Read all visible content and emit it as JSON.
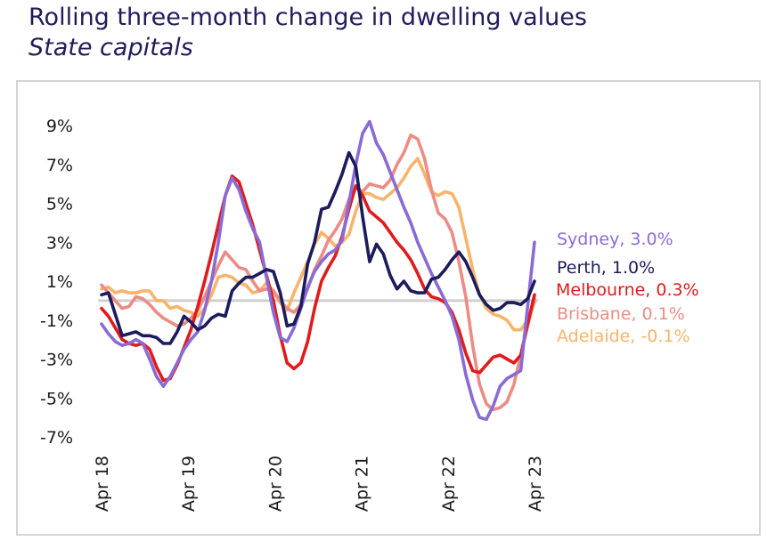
{
  "chart_data": {
    "type": "line",
    "title": "Rolling three-month change in dwelling values",
    "subtitle": "State capitals",
    "y_ticks": [
      "9%",
      "7%",
      "5%",
      "3%",
      "1%",
      "-1%",
      "-3%",
      "-5%",
      "-7%"
    ],
    "ylim": [
      -7,
      9
    ],
    "x_ticks": [
      "Apr 18",
      "Apr 19",
      "Apr 20",
      "Apr 21",
      "Apr 22",
      "Apr 23"
    ],
    "x_range": [
      "Apr 18",
      "Apr 23"
    ],
    "zero_line": true,
    "legend": "right",
    "series": [
      {
        "name": "Sydney",
        "label": "Sydney, 3.0%",
        "color": "#8a6bd6",
        "points": [
          [
            0,
            -1.2
          ],
          [
            1,
            -1.7
          ],
          [
            2,
            -2.1
          ],
          [
            3,
            -2.3
          ],
          [
            4,
            -2.2
          ],
          [
            5,
            -2.0
          ],
          [
            6,
            -2.2
          ],
          [
            7,
            -3.0
          ],
          [
            8,
            -3.9
          ],
          [
            9,
            -4.4
          ],
          [
            10,
            -3.9
          ],
          [
            11,
            -3.2
          ],
          [
            12,
            -2.5
          ],
          [
            13,
            -2.0
          ],
          [
            14,
            -1.6
          ],
          [
            15,
            -0.5
          ],
          [
            16,
            1.0
          ],
          [
            17,
            3.0
          ],
          [
            18,
            5.4
          ],
          [
            19,
            6.3
          ],
          [
            20,
            5.7
          ],
          [
            21,
            4.6
          ],
          [
            22,
            3.7
          ],
          [
            23,
            3.0
          ],
          [
            24,
            1.2
          ],
          [
            25,
            -0.6
          ],
          [
            26,
            -1.9
          ],
          [
            27,
            -2.1
          ],
          [
            28,
            -1.4
          ],
          [
            29,
            -0.4
          ],
          [
            30,
            0.7
          ],
          [
            31,
            1.5
          ],
          [
            32,
            2.0
          ],
          [
            33,
            2.4
          ],
          [
            34,
            2.6
          ],
          [
            35,
            3.1
          ],
          [
            36,
            5.0
          ],
          [
            37,
            7.0
          ],
          [
            38,
            8.6
          ],
          [
            39,
            9.2
          ],
          [
            40,
            8.1
          ],
          [
            41,
            7.5
          ],
          [
            42,
            6.6
          ],
          [
            43,
            5.7
          ],
          [
            44,
            4.8
          ],
          [
            45,
            4.0
          ],
          [
            46,
            3.0
          ],
          [
            47,
            2.2
          ],
          [
            48,
            1.4
          ],
          [
            49,
            0.7
          ],
          [
            50,
            0.0
          ],
          [
            51,
            -0.8
          ],
          [
            52,
            -2.0
          ],
          [
            53,
            -3.8
          ],
          [
            54,
            -5.1
          ],
          [
            55,
            -6.0
          ],
          [
            56,
            -6.1
          ],
          [
            57,
            -5.4
          ],
          [
            58,
            -4.4
          ],
          [
            59,
            -4.0
          ],
          [
            60,
            -3.8
          ],
          [
            61,
            -3.6
          ],
          [
            62,
            -0.3
          ],
          [
            63,
            3.0
          ]
        ]
      },
      {
        "name": "Perth",
        "label": "Perth, 1.0%",
        "color": "#1c1b5c",
        "points": [
          [
            0,
            0.3
          ],
          [
            1,
            0.4
          ],
          [
            2,
            -0.7
          ],
          [
            3,
            -1.8
          ],
          [
            4,
            -1.7
          ],
          [
            5,
            -1.6
          ],
          [
            6,
            -1.8
          ],
          [
            7,
            -1.8
          ],
          [
            8,
            -1.9
          ],
          [
            9,
            -2.2
          ],
          [
            10,
            -2.2
          ],
          [
            11,
            -1.6
          ],
          [
            12,
            -0.8
          ],
          [
            13,
            -1.1
          ],
          [
            14,
            -1.5
          ],
          [
            15,
            -1.3
          ],
          [
            16,
            -0.9
          ],
          [
            17,
            -0.7
          ],
          [
            18,
            -0.8
          ],
          [
            19,
            0.5
          ],
          [
            20,
            0.9
          ],
          [
            21,
            1.2
          ],
          [
            22,
            1.2
          ],
          [
            23,
            1.4
          ],
          [
            24,
            1.6
          ],
          [
            25,
            1.5
          ],
          [
            26,
            0.4
          ],
          [
            27,
            -1.3
          ],
          [
            28,
            -1.2
          ],
          [
            29,
            -0.3
          ],
          [
            30,
            1.9
          ],
          [
            31,
            3.0
          ],
          [
            32,
            4.7
          ],
          [
            33,
            4.8
          ],
          [
            34,
            5.6
          ],
          [
            35,
            6.5
          ],
          [
            36,
            7.6
          ],
          [
            37,
            6.9
          ],
          [
            38,
            4.3
          ],
          [
            39,
            2.0
          ],
          [
            40,
            2.9
          ],
          [
            41,
            2.4
          ],
          [
            42,
            1.3
          ],
          [
            43,
            0.6
          ],
          [
            44,
            1.0
          ],
          [
            45,
            0.5
          ],
          [
            46,
            0.4
          ],
          [
            47,
            0.4
          ],
          [
            48,
            1.1
          ],
          [
            49,
            1.2
          ],
          [
            50,
            1.6
          ],
          [
            51,
            2.1
          ],
          [
            52,
            2.5
          ],
          [
            53,
            2.0
          ],
          [
            54,
            1.2
          ],
          [
            55,
            0.3
          ],
          [
            56,
            -0.2
          ],
          [
            57,
            -0.5
          ],
          [
            58,
            -0.4
          ],
          [
            59,
            -0.1
          ],
          [
            60,
            -0.1
          ],
          [
            61,
            -0.2
          ],
          [
            62,
            0.1
          ],
          [
            63,
            1.0
          ]
        ]
      },
      {
        "name": "Melbourne",
        "label": "Melbourne, 0.3%",
        "color": "#e01b1b",
        "points": [
          [
            0,
            -0.4
          ],
          [
            1,
            -0.8
          ],
          [
            2,
            -1.4
          ],
          [
            3,
            -2.0
          ],
          [
            4,
            -2.2
          ],
          [
            5,
            -2.3
          ],
          [
            6,
            -2.2
          ],
          [
            7,
            -2.5
          ],
          [
            8,
            -3.4
          ],
          [
            9,
            -4.1
          ],
          [
            10,
            -4.0
          ],
          [
            11,
            -3.3
          ],
          [
            12,
            -2.4
          ],
          [
            13,
            -1.5
          ],
          [
            14,
            -0.3
          ],
          [
            15,
            1.0
          ],
          [
            16,
            2.4
          ],
          [
            17,
            3.9
          ],
          [
            18,
            5.4
          ],
          [
            19,
            6.4
          ],
          [
            20,
            6.1
          ],
          [
            21,
            5.0
          ],
          [
            22,
            3.9
          ],
          [
            23,
            2.6
          ],
          [
            24,
            1.3
          ],
          [
            25,
            0.0
          ],
          [
            26,
            -1.8
          ],
          [
            27,
            -3.2
          ],
          [
            28,
            -3.5
          ],
          [
            29,
            -3.2
          ],
          [
            30,
            -2.1
          ],
          [
            31,
            -0.4
          ],
          [
            32,
            1.0
          ],
          [
            33,
            1.7
          ],
          [
            34,
            2.3
          ],
          [
            35,
            3.3
          ],
          [
            36,
            4.7
          ],
          [
            37,
            5.9
          ],
          [
            38,
            5.4
          ],
          [
            39,
            4.6
          ],
          [
            40,
            4.3
          ],
          [
            41,
            4.0
          ],
          [
            42,
            3.5
          ],
          [
            43,
            3.0
          ],
          [
            44,
            2.6
          ],
          [
            45,
            2.1
          ],
          [
            46,
            1.4
          ],
          [
            47,
            0.6
          ],
          [
            48,
            0.2
          ],
          [
            49,
            0.1
          ],
          [
            50,
            -0.1
          ],
          [
            51,
            -0.6
          ],
          [
            52,
            -1.5
          ],
          [
            53,
            -2.7
          ],
          [
            54,
            -3.6
          ],
          [
            55,
            -3.7
          ],
          [
            56,
            -3.3
          ],
          [
            57,
            -2.9
          ],
          [
            58,
            -2.8
          ],
          [
            59,
            -3.0
          ],
          [
            60,
            -3.2
          ],
          [
            61,
            -2.8
          ],
          [
            62,
            -1.2
          ],
          [
            63,
            0.3
          ]
        ]
      },
      {
        "name": "Brisbane",
        "label": "Brisbane, 0.1%",
        "color": "#ec8c84",
        "points": [
          [
            0,
            0.8
          ],
          [
            1,
            0.4
          ],
          [
            2,
            0.0
          ],
          [
            3,
            -0.4
          ],
          [
            4,
            -0.3
          ],
          [
            5,
            0.2
          ],
          [
            6,
            0.1
          ],
          [
            7,
            -0.2
          ],
          [
            8,
            -0.6
          ],
          [
            9,
            -0.9
          ],
          [
            10,
            -1.1
          ],
          [
            11,
            -1.3
          ],
          [
            12,
            -1.2
          ],
          [
            13,
            -0.9
          ],
          [
            14,
            -0.5
          ],
          [
            15,
            0.2
          ],
          [
            16,
            1.0
          ],
          [
            17,
            1.8
          ],
          [
            18,
            2.5
          ],
          [
            19,
            2.1
          ],
          [
            20,
            1.7
          ],
          [
            21,
            1.6
          ],
          [
            22,
            1.0
          ],
          [
            23,
            0.5
          ],
          [
            24,
            0.6
          ],
          [
            25,
            0.5
          ],
          [
            26,
            0.0
          ],
          [
            27,
            -0.4
          ],
          [
            28,
            -0.6
          ],
          [
            29,
            -0.2
          ],
          [
            30,
            0.6
          ],
          [
            31,
            1.6
          ],
          [
            32,
            2.3
          ],
          [
            33,
            3.1
          ],
          [
            34,
            3.6
          ],
          [
            35,
            4.2
          ],
          [
            36,
            5.2
          ],
          [
            37,
            5.8
          ],
          [
            38,
            5.6
          ],
          [
            39,
            6.0
          ],
          [
            40,
            5.9
          ],
          [
            41,
            5.8
          ],
          [
            42,
            6.2
          ],
          [
            43,
            7.0
          ],
          [
            44,
            7.6
          ],
          [
            45,
            8.5
          ],
          [
            46,
            8.3
          ],
          [
            47,
            7.3
          ],
          [
            48,
            5.7
          ],
          [
            49,
            4.5
          ],
          [
            50,
            4.2
          ],
          [
            51,
            3.5
          ],
          [
            52,
            2.0
          ],
          [
            53,
            0.2
          ],
          [
            54,
            -2.3
          ],
          [
            55,
            -4.3
          ],
          [
            56,
            -5.3
          ],
          [
            57,
            -5.6
          ],
          [
            58,
            -5.5
          ],
          [
            59,
            -5.2
          ],
          [
            60,
            -4.3
          ],
          [
            61,
            -2.8
          ],
          [
            62,
            -1.3
          ],
          [
            63,
            0.1
          ]
        ]
      },
      {
        "name": "Adelaide",
        "label": "Adelaide, -0.1%",
        "color": "#f7b46a",
        "points": [
          [
            0,
            0.6
          ],
          [
            1,
            0.7
          ],
          [
            2,
            0.4
          ],
          [
            3,
            0.5
          ],
          [
            4,
            0.4
          ],
          [
            5,
            0.4
          ],
          [
            6,
            0.5
          ],
          [
            7,
            0.5
          ],
          [
            8,
            0.0
          ],
          [
            9,
            0.0
          ],
          [
            10,
            -0.4
          ],
          [
            11,
            -0.3
          ],
          [
            12,
            -0.5
          ],
          [
            13,
            -0.6
          ],
          [
            14,
            -0.8
          ],
          [
            15,
            -0.4
          ],
          [
            16,
            0.3
          ],
          [
            17,
            1.2
          ],
          [
            18,
            1.3
          ],
          [
            19,
            1.2
          ],
          [
            20,
            0.9
          ],
          [
            21,
            0.8
          ],
          [
            22,
            0.4
          ],
          [
            23,
            0.5
          ],
          [
            24,
            0.9
          ],
          [
            25,
            0.5
          ],
          [
            26,
            -0.1
          ],
          [
            27,
            -0.5
          ],
          [
            28,
            0.4
          ],
          [
            29,
            1.2
          ],
          [
            30,
            2.0
          ],
          [
            31,
            2.9
          ],
          [
            32,
            3.5
          ],
          [
            33,
            3.2
          ],
          [
            34,
            2.8
          ],
          [
            35,
            3.0
          ],
          [
            36,
            3.4
          ],
          [
            37,
            4.6
          ],
          [
            38,
            5.5
          ],
          [
            39,
            5.5
          ],
          [
            40,
            5.3
          ],
          [
            41,
            5.2
          ],
          [
            42,
            5.5
          ],
          [
            43,
            5.8
          ],
          [
            44,
            6.3
          ],
          [
            45,
            6.9
          ],
          [
            46,
            7.3
          ],
          [
            47,
            6.5
          ],
          [
            48,
            5.6
          ],
          [
            49,
            5.4
          ],
          [
            50,
            5.6
          ],
          [
            51,
            5.5
          ],
          [
            52,
            4.8
          ],
          [
            53,
            3.2
          ],
          [
            54,
            1.6
          ],
          [
            55,
            0.3
          ],
          [
            56,
            -0.4
          ],
          [
            57,
            -0.7
          ],
          [
            58,
            -0.8
          ],
          [
            59,
            -1.0
          ],
          [
            60,
            -1.5
          ],
          [
            61,
            -1.5
          ],
          [
            62,
            -1.0
          ],
          [
            63,
            -0.1
          ]
        ]
      }
    ]
  }
}
